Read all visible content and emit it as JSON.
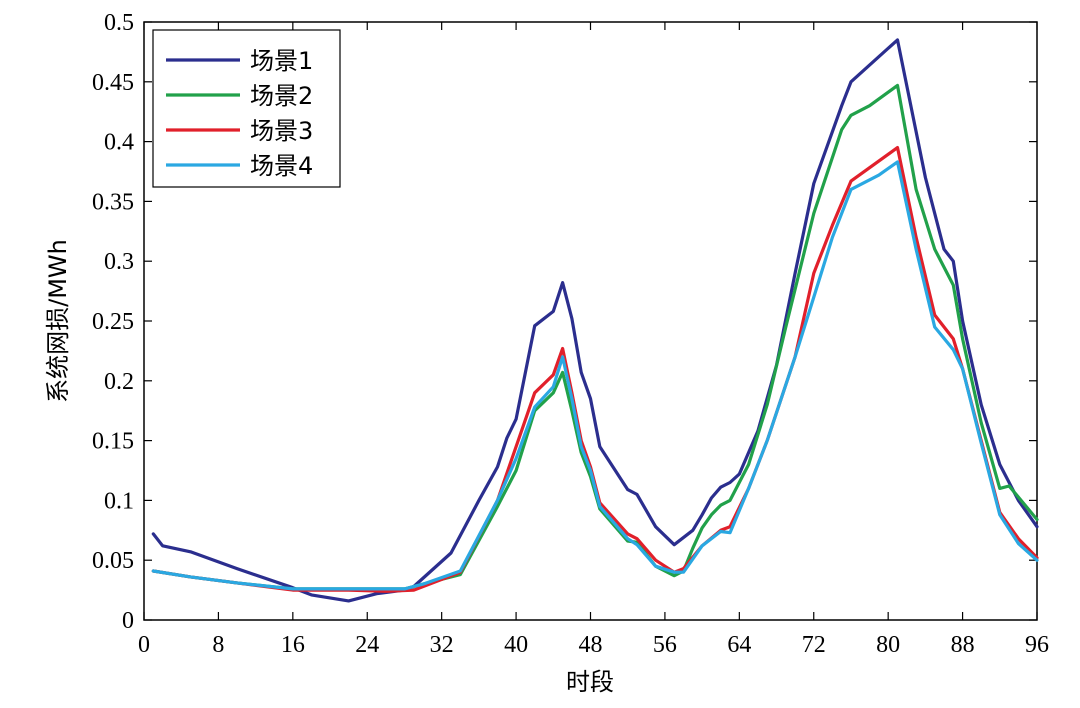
{
  "chart_data": {
    "type": "line",
    "title": "",
    "xlabel": "时段",
    "ylabel": "系统网损/MWh",
    "xlim": [
      0,
      96
    ],
    "ylim": [
      0,
      0.5
    ],
    "xticks": [
      0,
      8,
      16,
      24,
      32,
      40,
      48,
      56,
      64,
      72,
      80,
      88,
      96
    ],
    "yticks": [
      0,
      0.05,
      0.1,
      0.15,
      0.2,
      0.25,
      0.3,
      0.35,
      0.4,
      0.45,
      0.5
    ],
    "ytick_labels": [
      "0",
      "0.05",
      "0.1",
      "0.15",
      "0.2",
      "0.25",
      "0.3",
      "0.35",
      "0.4",
      "0.45",
      "0.5"
    ],
    "grid": false,
    "legend_position": "top-left",
    "series": [
      {
        "name": "场景1",
        "color": "#2b2e8e",
        "points": [
          [
            1,
            0.072
          ],
          [
            2,
            0.062
          ],
          [
            5,
            0.057
          ],
          [
            10,
            0.043
          ],
          [
            16,
            0.027
          ],
          [
            18,
            0.021
          ],
          [
            22,
            0.016
          ],
          [
            25,
            0.022
          ],
          [
            28,
            0.025
          ],
          [
            29,
            0.028
          ],
          [
            33,
            0.056
          ],
          [
            36,
            0.1
          ],
          [
            38,
            0.128
          ],
          [
            39,
            0.152
          ],
          [
            40,
            0.168
          ],
          [
            42,
            0.246
          ],
          [
            44,
            0.258
          ],
          [
            45,
            0.282
          ],
          [
            46,
            0.252
          ],
          [
            47,
            0.207
          ],
          [
            48,
            0.185
          ],
          [
            49,
            0.145
          ],
          [
            52,
            0.109
          ],
          [
            53,
            0.105
          ],
          [
            55,
            0.078
          ],
          [
            57,
            0.063
          ],
          [
            59,
            0.075
          ],
          [
            60,
            0.088
          ],
          [
            61,
            0.102
          ],
          [
            62,
            0.111
          ],
          [
            63,
            0.115
          ],
          [
            64,
            0.122
          ],
          [
            66,
            0.158
          ],
          [
            68,
            0.213
          ],
          [
            70,
            0.29
          ],
          [
            72,
            0.365
          ],
          [
            75,
            0.43
          ],
          [
            76,
            0.45
          ],
          [
            81,
            0.485
          ],
          [
            84,
            0.37
          ],
          [
            86,
            0.31
          ],
          [
            87,
            0.3
          ],
          [
            88,
            0.25
          ],
          [
            90,
            0.18
          ],
          [
            92,
            0.13
          ],
          [
            94,
            0.1
          ],
          [
            96,
            0.078
          ]
        ]
      },
      {
        "name": "场景2",
        "color": "#21a14a",
        "points": [
          [
            1,
            0.041
          ],
          [
            5,
            0.036
          ],
          [
            10,
            0.031
          ],
          [
            16,
            0.026
          ],
          [
            22,
            0.026
          ],
          [
            28,
            0.026
          ],
          [
            30,
            0.03
          ],
          [
            34,
            0.038
          ],
          [
            38,
            0.095
          ],
          [
            40,
            0.125
          ],
          [
            42,
            0.175
          ],
          [
            44,
            0.19
          ],
          [
            45,
            0.207
          ],
          [
            46,
            0.175
          ],
          [
            47,
            0.14
          ],
          [
            48,
            0.12
          ],
          [
            49,
            0.093
          ],
          [
            52,
            0.066
          ],
          [
            53,
            0.065
          ],
          [
            55,
            0.045
          ],
          [
            57,
            0.037
          ],
          [
            58,
            0.041
          ],
          [
            59,
            0.06
          ],
          [
            60,
            0.077
          ],
          [
            61,
            0.088
          ],
          [
            62,
            0.096
          ],
          [
            63,
            0.1
          ],
          [
            65,
            0.13
          ],
          [
            67,
            0.18
          ],
          [
            69,
            0.245
          ],
          [
            72,
            0.34
          ],
          [
            75,
            0.41
          ],
          [
            76,
            0.422
          ],
          [
            78,
            0.43
          ],
          [
            81,
            0.447
          ],
          [
            83,
            0.36
          ],
          [
            85,
            0.31
          ],
          [
            87,
            0.28
          ],
          [
            88,
            0.235
          ],
          [
            90,
            0.165
          ],
          [
            92,
            0.11
          ],
          [
            93,
            0.112
          ],
          [
            96,
            0.084
          ]
        ]
      },
      {
        "name": "场景3",
        "color": "#e1202b",
        "points": [
          [
            1,
            0.041
          ],
          [
            5,
            0.036
          ],
          [
            10,
            0.031
          ],
          [
            16,
            0.025
          ],
          [
            22,
            0.025
          ],
          [
            26,
            0.024
          ],
          [
            29,
            0.025
          ],
          [
            34,
            0.04
          ],
          [
            38,
            0.1
          ],
          [
            40,
            0.145
          ],
          [
            42,
            0.19
          ],
          [
            44,
            0.205
          ],
          [
            45,
            0.227
          ],
          [
            46,
            0.19
          ],
          [
            47,
            0.15
          ],
          [
            48,
            0.128
          ],
          [
            49,
            0.098
          ],
          [
            52,
            0.072
          ],
          [
            53,
            0.068
          ],
          [
            55,
            0.05
          ],
          [
            57,
            0.04
          ],
          [
            58,
            0.043
          ],
          [
            60,
            0.062
          ],
          [
            62,
            0.075
          ],
          [
            63,
            0.078
          ],
          [
            65,
            0.11
          ],
          [
            67,
            0.15
          ],
          [
            70,
            0.22
          ],
          [
            72,
            0.29
          ],
          [
            74,
            0.33
          ],
          [
            76,
            0.367
          ],
          [
            81,
            0.395
          ],
          [
            83,
            0.32
          ],
          [
            85,
            0.255
          ],
          [
            87,
            0.235
          ],
          [
            88,
            0.21
          ],
          [
            90,
            0.15
          ],
          [
            92,
            0.09
          ],
          [
            94,
            0.068
          ],
          [
            96,
            0.052
          ]
        ]
      },
      {
        "name": "场景4",
        "color": "#2aa8e2",
        "points": [
          [
            1,
            0.041
          ],
          [
            5,
            0.036
          ],
          [
            10,
            0.031
          ],
          [
            16,
            0.026
          ],
          [
            22,
            0.026
          ],
          [
            28,
            0.026
          ],
          [
            30,
            0.03
          ],
          [
            34,
            0.041
          ],
          [
            38,
            0.1
          ],
          [
            40,
            0.135
          ],
          [
            42,
            0.178
          ],
          [
            44,
            0.195
          ],
          [
            45,
            0.22
          ],
          [
            46,
            0.185
          ],
          [
            47,
            0.145
          ],
          [
            48,
            0.125
          ],
          [
            49,
            0.095
          ],
          [
            52,
            0.068
          ],
          [
            53,
            0.063
          ],
          [
            55,
            0.045
          ],
          [
            57,
            0.04
          ],
          [
            58,
            0.04
          ],
          [
            60,
            0.062
          ],
          [
            62,
            0.074
          ],
          [
            63,
            0.073
          ],
          [
            65,
            0.11
          ],
          [
            67,
            0.15
          ],
          [
            70,
            0.22
          ],
          [
            72,
            0.27
          ],
          [
            74,
            0.32
          ],
          [
            76,
            0.36
          ],
          [
            79,
            0.372
          ],
          [
            81,
            0.383
          ],
          [
            83,
            0.31
          ],
          [
            85,
            0.245
          ],
          [
            87,
            0.226
          ],
          [
            88,
            0.21
          ],
          [
            90,
            0.148
          ],
          [
            92,
            0.088
          ],
          [
            94,
            0.064
          ],
          [
            96,
            0.05
          ]
        ]
      }
    ]
  }
}
